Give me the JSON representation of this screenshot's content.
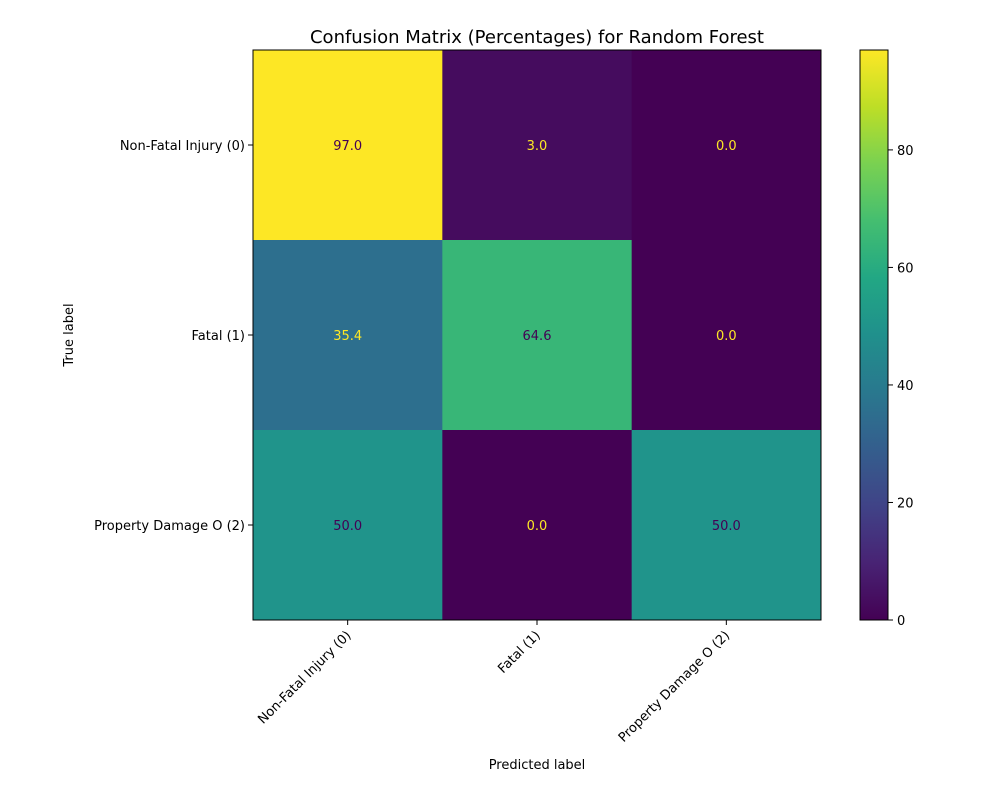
{
  "chart_data": {
    "type": "heatmap",
    "title": "Confusion Matrix (Percentages) for Random Forest",
    "xlabel": "Predicted label",
    "ylabel": "True label",
    "x_categories": [
      "Non-Fatal Injury (0)",
      "Fatal (1)",
      "Property Damage O (2)"
    ],
    "y_categories": [
      "Non-Fatal Injury (0)",
      "Fatal (1)",
      "Property Damage O (2)"
    ],
    "values": [
      [
        97.0,
        3.0,
        0.0
      ],
      [
        35.4,
        64.6,
        0.0
      ],
      [
        50.0,
        0.0,
        50.0
      ]
    ],
    "value_format": "0.0",
    "colormap": "viridis",
    "color_range": [
      0,
      97.0
    ],
    "colorbar_ticks": [
      0,
      20,
      40,
      60,
      80
    ],
    "grid": false,
    "legend": "colorbar-right"
  }
}
